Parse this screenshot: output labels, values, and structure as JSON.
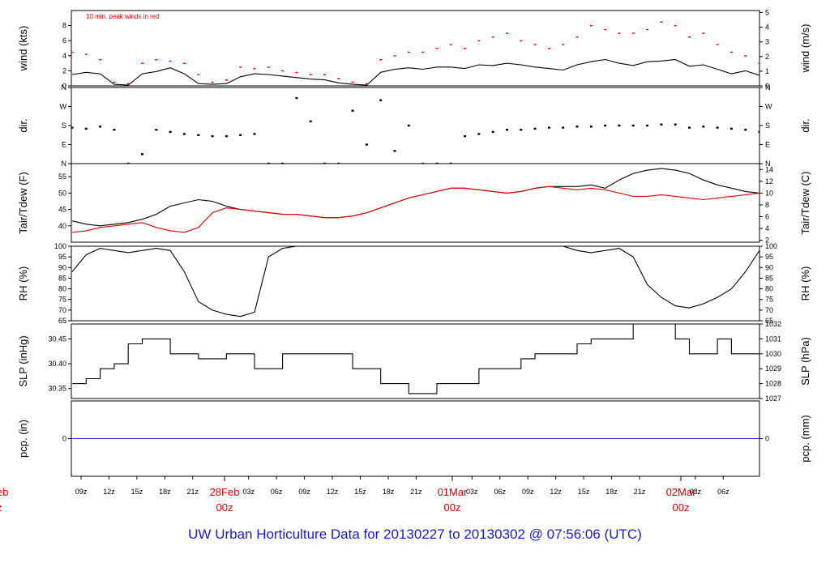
{
  "footer_title": "UW Urban Horticulture Data for 20130227  to  20130302 @ 07:56:06  (UTC)",
  "colors": {
    "primary": "#000000",
    "accent": "#e00000",
    "precip": "#2222cc",
    "footer": "#1a1acc"
  },
  "chart_data": [
    {
      "id": "wind",
      "type": "line",
      "ylabel_left": "wind (kts)",
      "ylabel_right": "wind (m/s)",
      "annotation": "10 min. peak winds in red",
      "ylim": [
        0,
        10
      ],
      "yticks_left": [
        0,
        2,
        4,
        6,
        8
      ],
      "ylim_right": [
        0,
        5.14
      ],
      "yticks_right": [
        0,
        1,
        2,
        3,
        4,
        5
      ],
      "series": [
        {
          "values": [
            1.5,
            1.8,
            1.6,
            0.2,
            0.1,
            1.6,
            1.9,
            2.4,
            1.6,
            0.3,
            0.2,
            0.3,
            1.2,
            1.6,
            1.5,
            1.3,
            1.1,
            0.9,
            0.8,
            0.4,
            0.2,
            0.1,
            1.8,
            2.2,
            2.4,
            2.2,
            2.5,
            2.5,
            2.3,
            2.8,
            2.7,
            3.0,
            2.8,
            2.5,
            2.3,
            2.1,
            2.8,
            3.2,
            3.5,
            3.0,
            2.7,
            3.2,
            3.3,
            3.5,
            2.6,
            2.8,
            2.2,
            1.6,
            2.0,
            1.4
          ]
        },
        {
          "values": [
            4.5,
            4.2,
            3.5,
            0.5,
            0.3,
            3.0,
            3.5,
            3.3,
            3.0,
            1.5,
            0.5,
            0.8,
            2.5,
            2.3,
            2.5,
            2.0,
            1.8,
            1.5,
            1.5,
            1.0,
            0.5,
            0.3,
            3.5,
            4.0,
            4.5,
            4.5,
            5.0,
            5.5,
            5.0,
            6.0,
            6.5,
            7.0,
            6.0,
            5.5,
            5.0,
            5.5,
            6.5,
            8.0,
            7.5,
            7.0,
            7.0,
            7.5,
            8.5,
            8.0,
            6.5,
            7.0,
            5.5,
            4.5,
            4.0,
            3.0
          ]
        }
      ]
    },
    {
      "id": "dir",
      "type": "scatter",
      "ylabel_left": "dir.",
      "ylabel_right": "dir.",
      "ylim": [
        0,
        360
      ],
      "ytick_labels": [
        "N",
        "E",
        "S",
        "W",
        "N"
      ],
      "values": [
        170,
        165,
        175,
        160,
        0,
        45,
        160,
        150,
        140,
        135,
        130,
        130,
        135,
        140,
        0,
        0,
        310,
        200,
        0,
        0,
        250,
        90,
        300,
        60,
        180,
        0,
        0,
        0,
        130,
        140,
        150,
        160,
        160,
        165,
        170,
        170,
        175,
        175,
        180,
        180,
        180,
        180,
        185,
        185,
        170,
        175,
        170,
        165,
        160,
        150
      ]
    },
    {
      "id": "temp",
      "type": "line",
      "ylabel_left": "Tair/Tdew (F)",
      "ylabel_right": "Tair/Tdew (C)",
      "ylim": [
        35,
        59
      ],
      "yticks_left": [
        40,
        45,
        50,
        55
      ],
      "ylim_right": [
        1.67,
        15
      ],
      "yticks_right": [
        2,
        4,
        6,
        8,
        10,
        12,
        14
      ],
      "series": [
        {
          "values": [
            41.5,
            40.5,
            40.0,
            40.5,
            41.0,
            42.0,
            43.5,
            46.0,
            47.0,
            48.0,
            47.5,
            46.0,
            45.0,
            44.5,
            44.0,
            43.5,
            43.5,
            43.0,
            42.5,
            42.5,
            43.0,
            44.0,
            45.5,
            47.0,
            48.5,
            49.5,
            50.5,
            51.5,
            51.5,
            51.0,
            50.5,
            50.0,
            50.5,
            51.5,
            52.0,
            52.0,
            52.0,
            52.5,
            51.5,
            54.0,
            56.0,
            57.0,
            57.5,
            57.0,
            56.0,
            54.0,
            52.5,
            51.5,
            50.5,
            50.0
          ]
        },
        {
          "values": [
            38.0,
            38.5,
            39.5,
            40.0,
            40.5,
            41.0,
            39.5,
            38.5,
            38.0,
            39.5,
            44.0,
            45.5,
            45.0,
            44.5,
            44.0,
            43.5,
            43.5,
            43.0,
            42.5,
            42.5,
            43.0,
            44.0,
            45.5,
            47.0,
            48.5,
            49.5,
            50.5,
            51.5,
            51.5,
            51.0,
            50.5,
            50.0,
            50.5,
            51.5,
            52.0,
            51.5,
            51.0,
            51.5,
            51.0,
            50.0,
            49.0,
            49.0,
            49.5,
            49.0,
            48.5,
            48.0,
            48.5,
            49.0,
            49.5,
            50.0
          ]
        }
      ]
    },
    {
      "id": "rh",
      "type": "line",
      "ylabel_left": "RH (%)",
      "ylabel_right": "RH (%)",
      "ylim": [
        65,
        100
      ],
      "yticks_left": [
        65,
        70,
        75,
        80,
        85,
        90,
        95,
        100
      ],
      "series": [
        {
          "values": [
            88,
            96,
            99,
            98,
            97,
            98,
            99,
            98,
            88,
            74,
            70,
            68,
            67,
            69,
            95,
            99,
            100,
            100,
            100,
            100,
            100,
            100,
            100,
            100,
            100,
            100,
            100,
            100,
            100,
            100,
            100,
            100,
            100,
            100,
            100,
            100,
            98,
            97,
            98,
            99,
            95,
            82,
            76,
            72,
            71,
            73,
            76,
            80,
            88,
            98
          ]
        }
      ]
    },
    {
      "id": "slp",
      "type": "line",
      "ylabel_left": "SLP (inHg)",
      "ylabel_right": "SLP (hPa)",
      "ylim": [
        30.33,
        30.48
      ],
      "yticks_left": [
        30.35,
        30.4,
        30.45
      ],
      "ylim_right": [
        1027,
        1032
      ],
      "yticks_right": [
        1027,
        1028,
        1029,
        1030,
        1031,
        1032
      ],
      "series": [
        {
          "values": [
            30.36,
            30.37,
            30.39,
            30.4,
            30.44,
            30.45,
            30.45,
            30.42,
            30.42,
            30.41,
            30.41,
            30.42,
            30.42,
            30.39,
            30.39,
            30.42,
            30.42,
            30.42,
            30.42,
            30.42,
            30.39,
            30.39,
            30.36,
            30.36,
            30.34,
            30.34,
            30.36,
            30.36,
            30.36,
            30.39,
            30.39,
            30.39,
            30.41,
            30.42,
            30.42,
            30.42,
            30.44,
            30.45,
            30.45,
            30.45,
            30.48,
            30.48,
            30.48,
            30.45,
            30.42,
            30.42,
            30.45,
            30.42,
            30.42,
            30.42
          ]
        }
      ]
    },
    {
      "id": "pcp",
      "type": "line",
      "ylabel_left": "pcp. (in)",
      "ylabel_right": "pcp. (mm)",
      "ylim": [
        -1,
        1
      ],
      "ytick_left": "0",
      "ytick_right": "0",
      "series": [
        {
          "values": [
            0,
            0
          ]
        }
      ]
    }
  ],
  "xaxis": {
    "hour_ticks": [
      "09z",
      "12z",
      "15z",
      "18z",
      "21z",
      "03z",
      "06z",
      "09z",
      "12z",
      "15z",
      "18z",
      "21z",
      "03z",
      "06z",
      "09z",
      "12z",
      "15z",
      "18z",
      "21z",
      "03z",
      "06z"
    ],
    "dates": [
      {
        "date": "eb",
        "time": "z"
      },
      {
        "date": "28Feb",
        "time": "00z"
      },
      {
        "date": "01Mar",
        "time": "00z"
      },
      {
        "date": "02Mar",
        "time": "00z"
      }
    ]
  }
}
